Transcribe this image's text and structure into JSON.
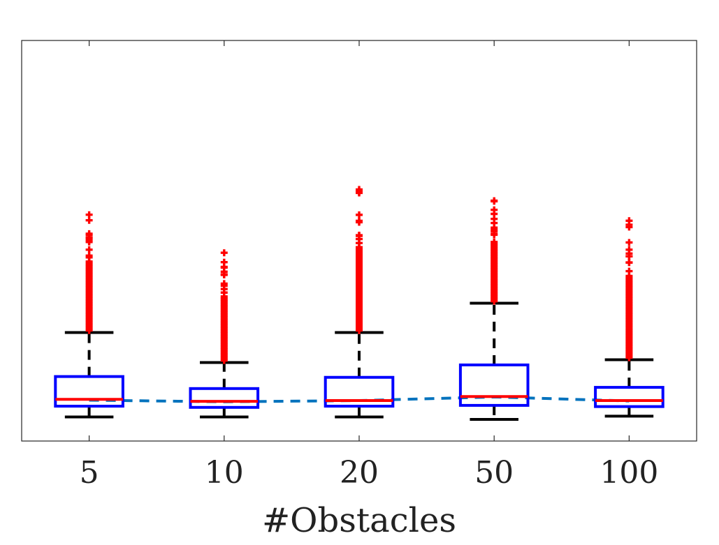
{
  "chart_data": {
    "type": "box",
    "title": "",
    "xlabel": "#Obstacles",
    "ylabel": "",
    "categories": [
      "5",
      "10",
      "20",
      "50",
      "100"
    ],
    "ylim": [
      0,
      1
    ],
    "grid": false,
    "legend": "none",
    "y_ticks_shown": false,
    "boxes": [
      {
        "category": "5",
        "whisker_low": 0.06,
        "q1": 0.087,
        "median": 0.104,
        "q3": 0.161,
        "whisker_high": 0.271,
        "outlier_max": 0.565
      },
      {
        "category": "10",
        "whisker_low": 0.06,
        "q1": 0.084,
        "median": 0.099,
        "q3": 0.131,
        "whisker_high": 0.196,
        "outlier_max": 0.47
      },
      {
        "category": "20",
        "whisker_low": 0.06,
        "q1": 0.087,
        "median": 0.101,
        "q3": 0.159,
        "whisker_high": 0.271,
        "outlier_max": 0.628
      },
      {
        "category": "50",
        "whisker_low": 0.054,
        "q1": 0.089,
        "median": 0.111,
        "q3": 0.19,
        "whisker_high": 0.344,
        "outlier_max": 0.6
      },
      {
        "category": "100",
        "whisker_low": 0.062,
        "q1": 0.086,
        "median": 0.101,
        "q3": 0.134,
        "whisker_high": 0.203,
        "outlier_max": 0.55
      }
    ],
    "mean_line": {
      "values": [
        0.102,
        0.098,
        0.101,
        0.11,
        0.1
      ],
      "style": "dashed"
    },
    "colors": {
      "box": "#0000ff",
      "median": "#ff0000",
      "whisker": "#000000",
      "outlier": "#ff0000",
      "mean_line": "#0072bd"
    }
  }
}
